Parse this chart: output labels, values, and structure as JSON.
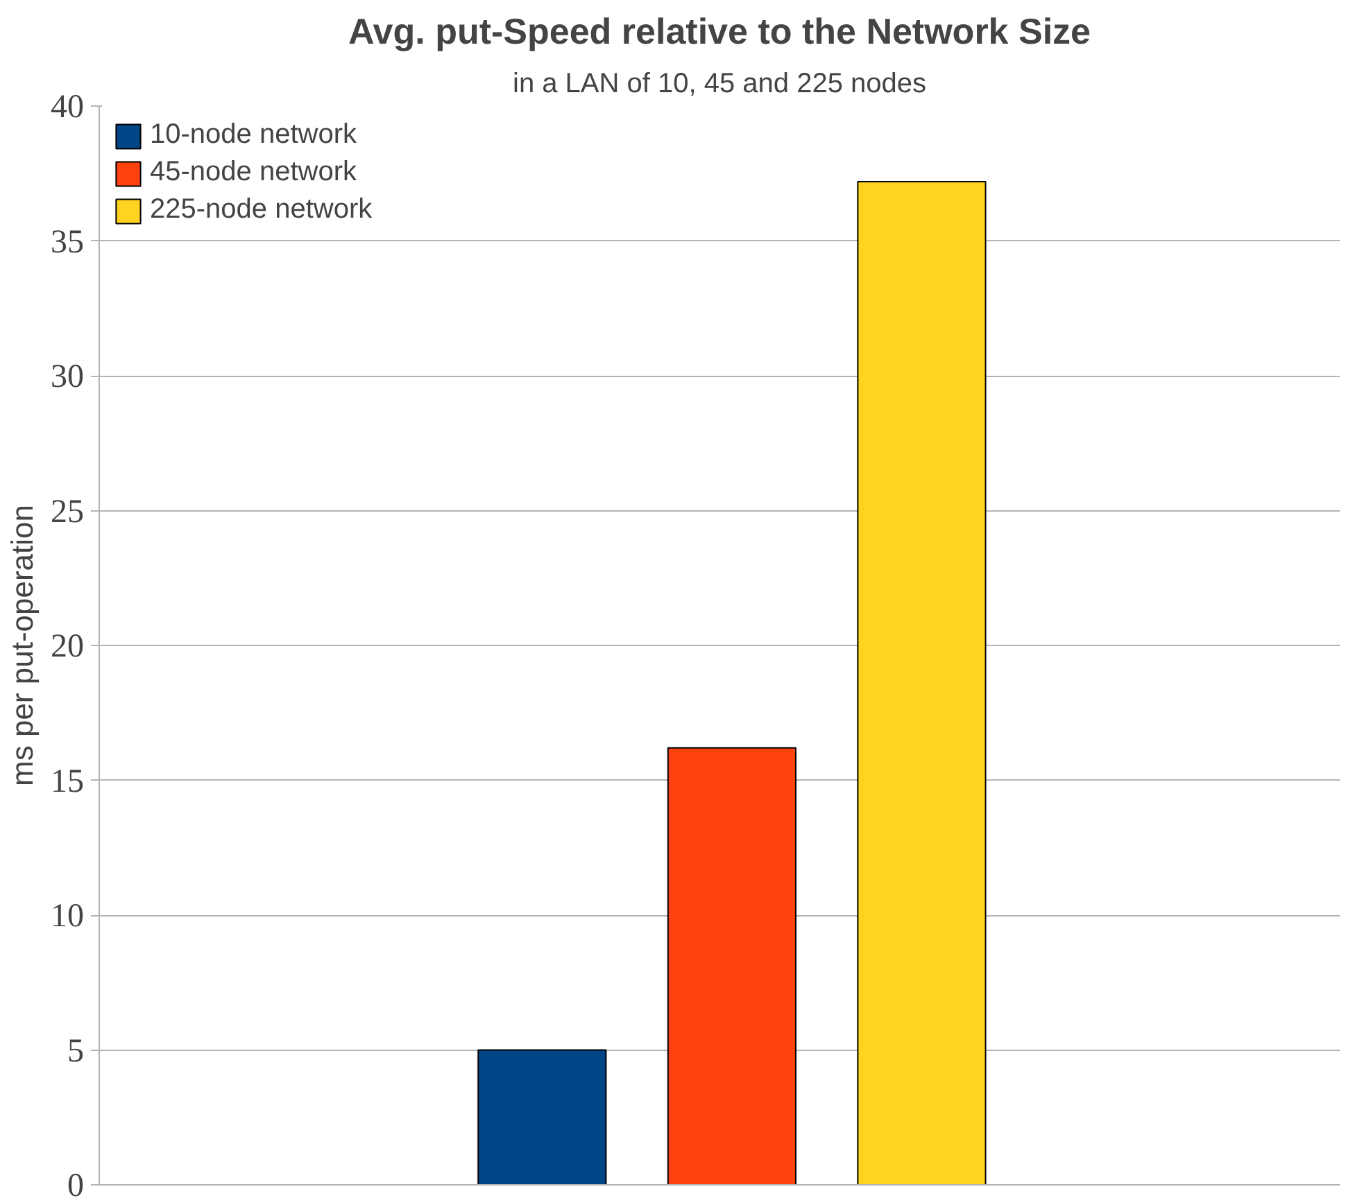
{
  "chart_data": {
    "type": "bar",
    "title": "Avg. put-Speed relative to the Network Size",
    "subtitle": "in a LAN of 10, 45 and 225 nodes",
    "ylabel": "ms per put-operation",
    "categories": [
      null
    ],
    "series": [
      {
        "name": "10-node network",
        "color": "#004586",
        "values": [
          5.0
        ]
      },
      {
        "name": "45-node network",
        "color": "#ff420e",
        "values": [
          16.2
        ]
      },
      {
        "name": "225-node network",
        "color": "#ffd320",
        "values": [
          37.2
        ]
      }
    ],
    "ylim": [
      0,
      40
    ],
    "yticks": [
      0,
      5,
      10,
      15,
      20,
      25,
      30,
      35,
      40
    ],
    "grid": "y",
    "legend": "top left",
    "tick_labels": "y"
  }
}
